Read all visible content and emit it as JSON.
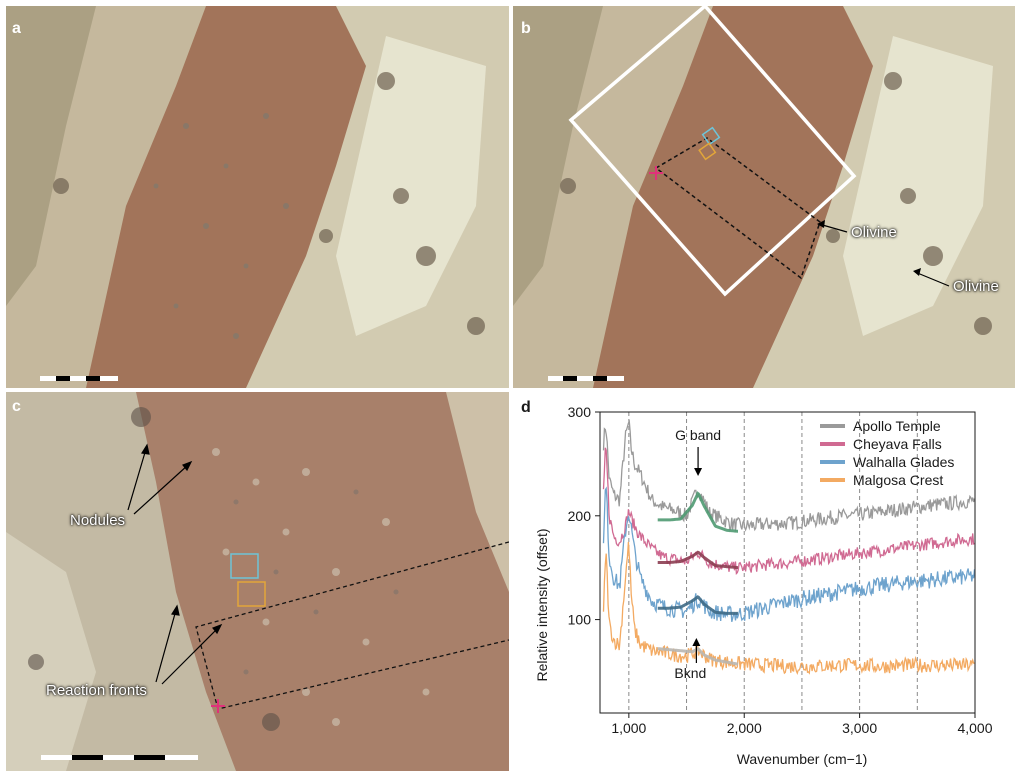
{
  "panels": {
    "a": {
      "letter": "a"
    },
    "b": {
      "letter": "b",
      "callouts": [
        "Olivine",
        "Olivine"
      ]
    },
    "c": {
      "letter": "c",
      "callouts": [
        "Nodules",
        "Reaction fronts"
      ]
    },
    "d": {
      "letter": "d"
    }
  },
  "chart_data": {
    "type": "line",
    "xlabel": "Wavenumber (cm−1)",
    "ylabel": "Relative intensity (offset)",
    "xlim": [
      750,
      4000
    ],
    "ylim": [
      10,
      300
    ],
    "xticks": [
      1000,
      2000,
      3000,
      4000
    ],
    "xtick_labels": [
      "1,000",
      "2,000",
      "3,000",
      "4,000"
    ],
    "yticks": [
      100,
      200,
      300
    ],
    "ytick_labels": [
      "100",
      "200",
      "300"
    ],
    "vlines": [
      1000,
      1500,
      2000,
      2500,
      3000,
      3500
    ],
    "legend_position": "top-right",
    "annotations": [
      {
        "text": "G band",
        "x": 1600,
        "y": 255
      },
      {
        "text": "Bknd",
        "x": 1620,
        "y": 35
      }
    ],
    "series": [
      {
        "name": "Apollo Temple",
        "color": "#9a9a9a",
        "fit_color": "#4f9a72",
        "x": [
          780,
          800,
          830,
          870,
          920,
          970,
          1000,
          1020,
          1050,
          1100,
          1200,
          1300,
          1400,
          1500,
          1600,
          1700,
          1800,
          1900,
          2000,
          2200,
          2400,
          2600,
          2800,
          3000,
          3200,
          3400,
          3600,
          3800,
          4000
        ],
        "y": [
          270,
          290,
          235,
          220,
          215,
          275,
          290,
          265,
          250,
          240,
          215,
          208,
          205,
          200,
          226,
          203,
          197,
          192,
          190,
          192,
          193,
          196,
          199,
          201,
          204,
          207,
          210,
          212,
          215
        ],
        "fit_x": [
          1250,
          1350,
          1450,
          1550,
          1600,
          1650,
          1750,
          1850,
          1950
        ],
        "fit_y": [
          196,
          196,
          197,
          210,
          222,
          210,
          190,
          186,
          185
        ]
      },
      {
        "name": "Cheyava Falls",
        "color": "#d06a92",
        "fit_color": "#8c3e52",
        "x": [
          780,
          800,
          830,
          870,
          920,
          970,
          1000,
          1020,
          1050,
          1100,
          1200,
          1300,
          1400,
          1500,
          1600,
          1700,
          1800,
          1900,
          2000,
          2200,
          2400,
          2600,
          2800,
          3000,
          3200,
          3400,
          3600,
          3800,
          4000
        ],
        "y": [
          220,
          270,
          200,
          180,
          175,
          190,
          205,
          198,
          190,
          180,
          168,
          160,
          158,
          156,
          165,
          155,
          152,
          150,
          150,
          153,
          155,
          158,
          161,
          164,
          167,
          170,
          173,
          176,
          178
        ],
        "fit_x": [
          1250,
          1350,
          1450,
          1550,
          1600,
          1650,
          1750,
          1850,
          1950
        ],
        "fit_y": [
          155,
          155,
          156,
          161,
          165,
          160,
          152,
          151,
          150
        ]
      },
      {
        "name": "Walhalla Glades",
        "color": "#6ea3cd",
        "fit_color": "#3e6a86",
        "x": [
          780,
          800,
          830,
          870,
          920,
          970,
          1000,
          1020,
          1050,
          1100,
          1200,
          1300,
          1400,
          1500,
          1600,
          1700,
          1800,
          1900,
          2000,
          2200,
          2400,
          2600,
          2800,
          3000,
          3200,
          3400,
          3600,
          3800,
          4000
        ],
        "y": [
          170,
          235,
          160,
          140,
          132,
          185,
          205,
          188,
          165,
          140,
          118,
          112,
          110,
          108,
          120,
          108,
          106,
          105,
          106,
          112,
          118,
          122,
          126,
          130,
          133,
          136,
          138,
          140,
          142
        ],
        "fit_x": [
          1250,
          1350,
          1450,
          1550,
          1600,
          1650,
          1750,
          1850,
          1950
        ],
        "fit_y": [
          111,
          111,
          112,
          118,
          122,
          115,
          107,
          106,
          106
        ]
      },
      {
        "name": "Malgosa Crest",
        "color": "#f3aa62",
        "fit_color": "#b9b6b0",
        "x": [
          780,
          800,
          830,
          870,
          920,
          970,
          1000,
          1020,
          1050,
          1100,
          1200,
          1300,
          1400,
          1500,
          1600,
          1700,
          1800,
          1900,
          2000,
          2200,
          2400,
          2600,
          2800,
          3000,
          3200,
          3400,
          3600,
          3800,
          4000
        ],
        "y": [
          105,
          170,
          95,
          80,
          75,
          140,
          175,
          125,
          90,
          76,
          70,
          68,
          66,
          65,
          70,
          62,
          60,
          58,
          57,
          56,
          55,
          55,
          56,
          56,
          55,
          56,
          56,
          56,
          56
        ],
        "fit_x": [
          1250,
          1350,
          1450,
          1550,
          1600,
          1650,
          1750,
          1850,
          1950
        ],
        "fit_y": [
          72,
          71,
          70,
          69,
          72,
          66,
          61,
          59,
          57
        ]
      }
    ]
  }
}
